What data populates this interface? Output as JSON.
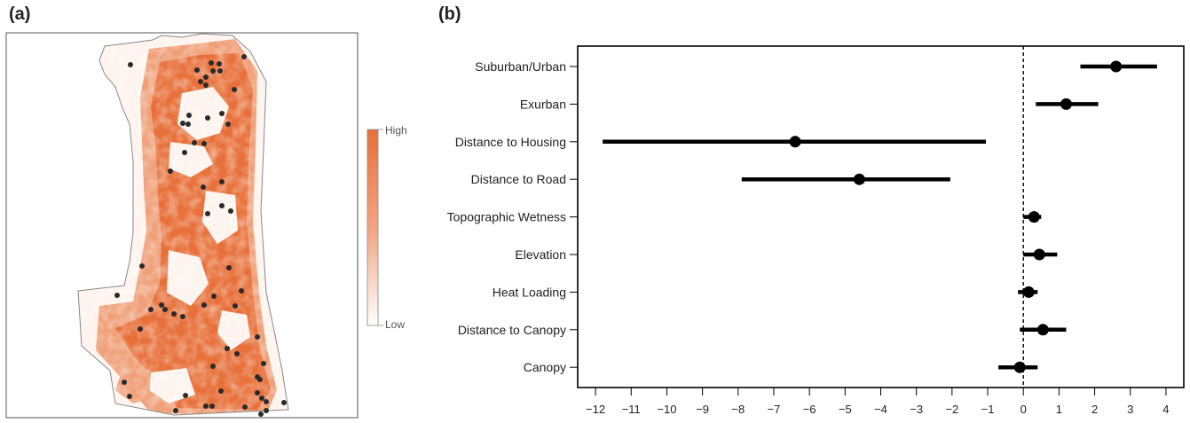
{
  "panel_a": {
    "label": "(a)",
    "legend": {
      "high": "High",
      "low": "Low",
      "high_color": "#e8703a",
      "low_color": "#ffffff"
    }
  },
  "panel_b": {
    "label": "(b)"
  },
  "chart_data": {
    "type": "forest",
    "title": "",
    "xlabel": "",
    "ylabel": "",
    "xlim": [
      -12.5,
      4.5
    ],
    "xticks": [
      -12,
      -11,
      -10,
      -9,
      -8,
      -7,
      -6,
      -5,
      -4,
      -3,
      -2,
      -1,
      0,
      1,
      2,
      3,
      4
    ],
    "reference_line": 0,
    "grid": false,
    "categories": [
      "Suburban/Urban",
      "Exurban",
      "Distance to Housing",
      "Distance to Road",
      "Topographic Wetness",
      "Elevation",
      "Heat Loading",
      "Distance to Canopy",
      "Canopy"
    ],
    "estimates": [
      2.6,
      1.2,
      -6.4,
      -4.6,
      0.3,
      0.45,
      0.15,
      0.55,
      -0.1
    ],
    "lower": [
      1.6,
      0.35,
      -11.8,
      -7.9,
      0.0,
      0.0,
      -0.15,
      -0.1,
      -0.7
    ],
    "upper": [
      3.75,
      2.1,
      -1.05,
      -2.05,
      0.5,
      0.95,
      0.4,
      1.2,
      0.4
    ],
    "color": "#000000"
  }
}
